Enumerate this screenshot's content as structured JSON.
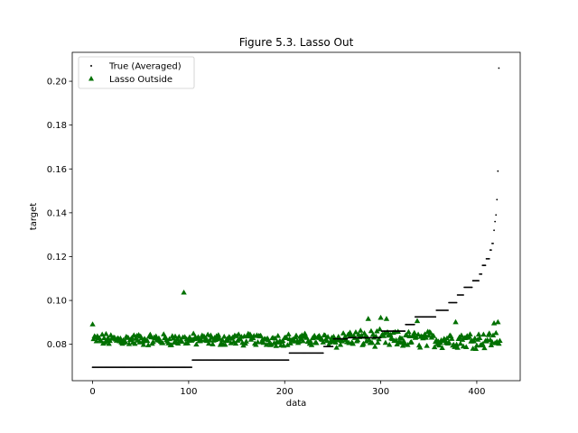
{
  "chart_data": {
    "type": "scatter",
    "title": "Figure 5.3. Lasso Out",
    "xlabel": "data",
    "ylabel": "target",
    "xlim": [
      -21.2,
      445.2
    ],
    "ylim": [
      0.0634,
      0.2132
    ],
    "xticks": [
      0,
      100,
      200,
      300,
      400
    ],
    "xtick_labels": [
      "0",
      "100",
      "200",
      "300",
      "400"
    ],
    "yticks": [
      0.08,
      0.1,
      0.12,
      0.14,
      0.16,
      0.18,
      0.2
    ],
    "ytick_labels": [
      "0.08",
      "0.10",
      "0.12",
      "0.14",
      "0.16",
      "0.18",
      "0.20"
    ],
    "legend_position": "top-left",
    "grid": false,
    "series": [
      {
        "name": "True (Averaged)",
        "marker": "dot",
        "color": "#000000",
        "segments": [
          {
            "x_start": 0,
            "x_end": 103,
            "y": 0.0695
          },
          {
            "x_start": 104,
            "x_end": 204,
            "y": 0.0728
          },
          {
            "x_start": 205,
            "x_end": 240,
            "y": 0.076
          },
          {
            "x_start": 241,
            "x_end": 250,
            "y": 0.079
          },
          {
            "x_start": 251,
            "x_end": 265,
            "y": 0.0825
          },
          {
            "x_start": 266,
            "x_end": 300,
            "y": 0.083
          },
          {
            "x_start": 301,
            "x_end": 325,
            "y": 0.086
          },
          {
            "x_start": 326,
            "x_end": 335,
            "y": 0.089
          },
          {
            "x_start": 336,
            "x_end": 357,
            "y": 0.0925
          },
          {
            "x_start": 358,
            "x_end": 370,
            "y": 0.0955
          },
          {
            "x_start": 371,
            "x_end": 379,
            "y": 0.099
          },
          {
            "x_start": 380,
            "x_end": 386,
            "y": 0.1025
          },
          {
            "x_start": 387,
            "x_end": 395,
            "y": 0.106
          },
          {
            "x_start": 396,
            "x_end": 402,
            "y": 0.109
          },
          {
            "x_start": 403,
            "x_end": 405,
            "y": 0.112
          },
          {
            "x_start": 406,
            "x_end": 409,
            "y": 0.116
          },
          {
            "x_start": 410,
            "x_end": 413,
            "y": 0.119
          },
          {
            "x_start": 414,
            "x_end": 415,
            "y": 0.123
          },
          {
            "x_start": 416,
            "x_end": 417,
            "y": 0.126
          }
        ],
        "points": [
          {
            "x": 418,
            "y": 0.132
          },
          {
            "x": 419,
            "y": 0.136
          },
          {
            "x": 420,
            "y": 0.139
          },
          {
            "x": 421,
            "y": 0.146
          },
          {
            "x": 422,
            "y": 0.159
          },
          {
            "x": 423,
            "y": 0.206
          }
        ]
      },
      {
        "name": "Lasso Outside",
        "marker": "triangle",
        "color": "#007000",
        "baseline": 0.082,
        "n_points": 425,
        "outliers": [
          {
            "x": 0,
            "y": 0.089
          },
          {
            "x": 95,
            "y": 0.1035
          },
          {
            "x": 287,
            "y": 0.0915
          },
          {
            "x": 300,
            "y": 0.092
          },
          {
            "x": 306,
            "y": 0.0915
          },
          {
            "x": 338,
            "y": 0.0905
          },
          {
            "x": 378,
            "y": 0.09
          },
          {
            "x": 418,
            "y": 0.0895
          },
          {
            "x": 422,
            "y": 0.09
          }
        ]
      }
    ]
  }
}
